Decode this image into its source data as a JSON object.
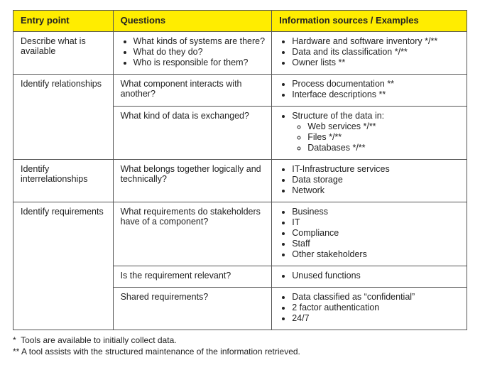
{
  "table": {
    "header_bg": "#ffed00",
    "columns": [
      "Entry point",
      "Questions",
      "Information sources / Examples"
    ],
    "groups": [
      {
        "entry": "Describe what is available",
        "rows": [
          {
            "questions": [
              "What kinds of systems are there?",
              "What do they do?",
              "Who is responsible for them?"
            ],
            "sources": [
              "Hardware and software inventory */**",
              "Data and its classification */**",
              "Owner lists **"
            ]
          }
        ]
      },
      {
        "entry": "Identify relationships",
        "rows": [
          {
            "questions_text": "What component interacts with another?",
            "sources": [
              "Process documentation **",
              "Interface descriptions **"
            ]
          },
          {
            "questions_text": "What kind of data is exchanged?",
            "sources_nested": {
              "lead": "Structure of the data in:",
              "items": [
                "Web services */**",
                "Files */**",
                "Databases */**"
              ]
            }
          }
        ]
      },
      {
        "entry": "Identify interrelationships",
        "rows": [
          {
            "questions_text": "What belongs together logically and technically?",
            "sources": [
              "IT-Infrastructure services",
              "Data storage",
              "Network"
            ]
          }
        ]
      },
      {
        "entry": "Identify requirements",
        "rows": [
          {
            "questions_text": "What requirements do stakeholders have of a component?",
            "sources": [
              "Business",
              "IT",
              "Compliance",
              "Staff",
              "Other stakeholders"
            ]
          },
          {
            "questions_text": "Is the requirement relevant?",
            "sources": [
              "Unused functions"
            ]
          },
          {
            "questions_text": "Shared requirements?",
            "sources": [
              "Data classified as “confidential”",
              "2 factor authentication",
              "24/7"
            ]
          }
        ]
      }
    ]
  },
  "footnotes": [
    "*  Tools are available to initially collect data.",
    "** A tool assists with the structured maintenance of the information retrieved."
  ]
}
